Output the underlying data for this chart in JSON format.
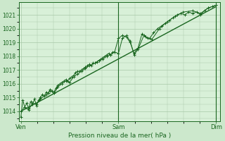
{
  "bg_color": "#cce8cc",
  "plot_bg_color": "#d8f0d8",
  "grid_color": "#a8c8a8",
  "line_color": "#1a6620",
  "ylabel_ticks": [
    1014,
    1015,
    1016,
    1017,
    1018,
    1019,
    1020,
    1021
  ],
  "ymin": 1013.3,
  "ymax": 1021.9,
  "xlabel": "Pression niveau de la mer( hPa )",
  "xtick_labels": [
    "Ven",
    "Sam",
    "Dim"
  ],
  "xtick_positions": [
    0.0,
    0.5,
    1.0
  ],
  "straight_line": {
    "x": [
      0.0,
      1.0
    ],
    "y": [
      1014.0,
      1021.6
    ]
  },
  "jagged_line": {
    "x": [
      0.0,
      0.01,
      0.02,
      0.03,
      0.04,
      0.05,
      0.06,
      0.07,
      0.08,
      0.09,
      0.1,
      0.11,
      0.12,
      0.13,
      0.14,
      0.15,
      0.16,
      0.17,
      0.18,
      0.19,
      0.2,
      0.21,
      0.22,
      0.23,
      0.24,
      0.25,
      0.26,
      0.27,
      0.28,
      0.29,
      0.3,
      0.31,
      0.32,
      0.33,
      0.34,
      0.35,
      0.36,
      0.37,
      0.38,
      0.39,
      0.4,
      0.41,
      0.42,
      0.43,
      0.44,
      0.45,
      0.46,
      0.47,
      0.48,
      0.5,
      0.52,
      0.54,
      0.56,
      0.58,
      0.6,
      0.62,
      0.64,
      0.66,
      0.68,
      0.7,
      0.72,
      0.74,
      0.76,
      0.78,
      0.8,
      0.82,
      0.84,
      0.86,
      0.88,
      0.9,
      0.92,
      0.94,
      0.96,
      0.98,
      1.0
    ],
    "y": [
      1013.6,
      1014.8,
      1014.3,
      1014.6,
      1014.2,
      1014.7,
      1014.5,
      1014.9,
      1014.4,
      1014.8,
      1015.0,
      1015.2,
      1015.1,
      1015.4,
      1015.3,
      1015.6,
      1015.5,
      1015.4,
      1015.7,
      1015.9,
      1016.0,
      1016.1,
      1016.2,
      1016.3,
      1016.2,
      1016.4,
      1016.5,
      1016.6,
      1016.8,
      1016.9,
      1016.9,
      1017.0,
      1017.1,
      1017.2,
      1017.3,
      1017.4,
      1017.3,
      1017.5,
      1017.5,
      1017.6,
      1017.7,
      1017.8,
      1017.9,
      1018.0,
      1018.1,
      1018.2,
      1018.1,
      1018.3,
      1018.3,
      1019.3,
      1019.5,
      1019.4,
      1019.0,
      1018.2,
      1018.6,
      1019.6,
      1019.4,
      1019.3,
      1019.7,
      1020.0,
      1020.2,
      1020.4,
      1020.6,
      1020.8,
      1021.0,
      1021.1,
      1021.0,
      1021.2,
      1021.1,
      1021.2,
      1021.0,
      1021.3,
      1021.5,
      1021.6,
      1021.7
    ]
  },
  "smooth_line": {
    "x": [
      0.0,
      0.02,
      0.04,
      0.06,
      0.08,
      0.1,
      0.13,
      0.15,
      0.17,
      0.19,
      0.21,
      0.23,
      0.25,
      0.27,
      0.29,
      0.31,
      0.33,
      0.35,
      0.38,
      0.4,
      0.42,
      0.44,
      0.46,
      0.48,
      0.5,
      0.52,
      0.54,
      0.56,
      0.58,
      0.6,
      0.63,
      0.65,
      0.67,
      0.71,
      0.75,
      0.79,
      0.83,
      0.88,
      0.92,
      0.96,
      1.0
    ],
    "y": [
      1014.0,
      1014.3,
      1014.1,
      1014.6,
      1014.5,
      1014.9,
      1015.2,
      1015.5,
      1015.3,
      1015.8,
      1016.0,
      1016.2,
      1016.1,
      1016.5,
      1016.7,
      1016.9,
      1017.1,
      1017.3,
      1017.5,
      1017.7,
      1017.8,
      1018.0,
      1018.1,
      1018.3,
      1018.2,
      1019.3,
      1019.5,
      1019.1,
      1018.1,
      1018.5,
      1019.5,
      1019.3,
      1019.2,
      1020.0,
      1020.5,
      1020.9,
      1021.2,
      1021.3,
      1021.1,
      1021.5,
      1021.7
    ]
  }
}
